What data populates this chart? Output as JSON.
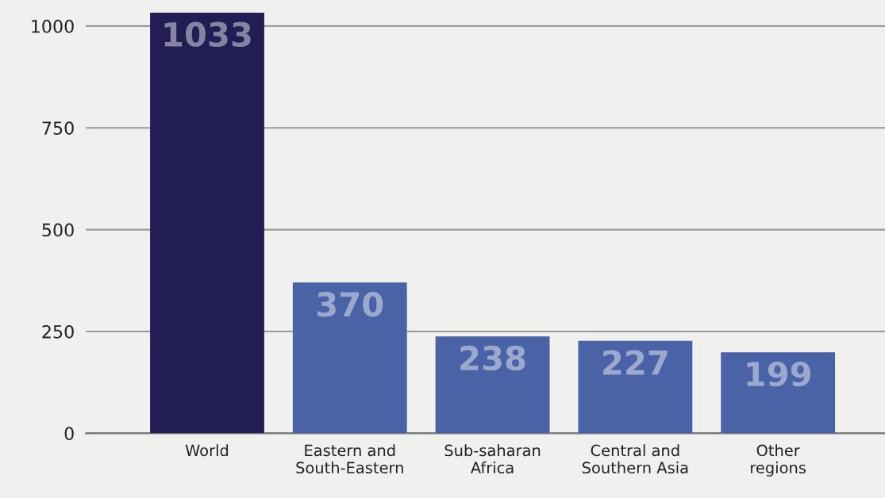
{
  "chart_data": {
    "type": "bar",
    "categories": [
      "World",
      "Eastern and\nSouth-Eastern",
      "Sub-saharan\nAfrica",
      "Central and\nSouthern Asia",
      "Other\nregions"
    ],
    "values": [
      1033,
      370,
      238,
      227,
      199
    ],
    "colors": [
      "#221e55",
      "#4a62a6",
      "#4a62a6",
      "#4a62a6",
      "#4a62a6"
    ],
    "ylim": [
      0,
      1064
    ],
    "yticks": [
      0,
      250,
      500,
      750,
      1000
    ],
    "grid": "y",
    "data_labels": true
  }
}
